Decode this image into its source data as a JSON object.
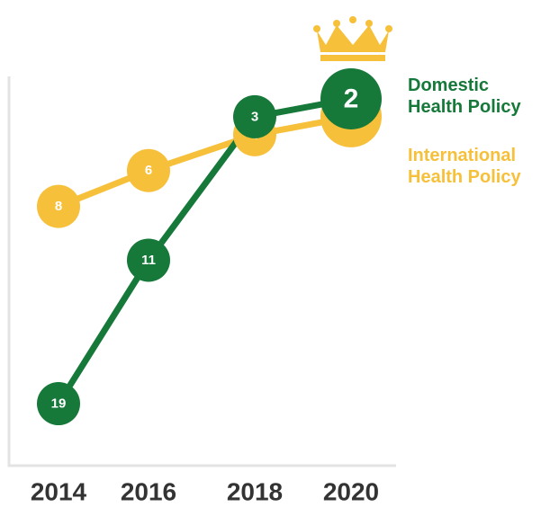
{
  "chart_data": {
    "type": "line",
    "categories": [
      "2014",
      "2016",
      "2018",
      "2020"
    ],
    "series": [
      {
        "name": "Domestic Health Policy",
        "color": "#16793a",
        "values": [
          19,
          11,
          3,
          2
        ]
      },
      {
        "name": "International Health Policy",
        "color": "#f6c03b",
        "values": [
          8,
          6,
          4,
          3
        ]
      }
    ],
    "ylim": [
      20,
      1
    ]
  }
}
